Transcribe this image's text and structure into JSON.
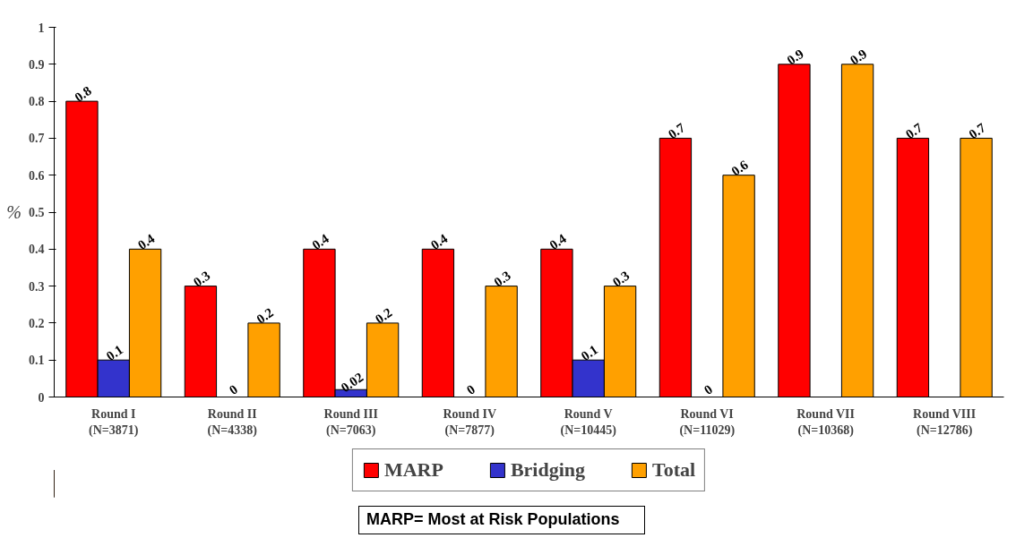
{
  "chart_data": {
    "type": "bar",
    "ylabel": "%",
    "categories": [
      "Round I (N=3871)",
      "Round II (N=4338)",
      "Round III (N=7063)",
      "Round IV (N=7877)",
      "Round V (N=10445)",
      "Round VI (N=11029)",
      "Round VII (N=10368)",
      "Round VIII (N=12786)"
    ],
    "series": [
      {
        "name": "MARP",
        "color": "#ff0000",
        "values": [
          0.8,
          0.3,
          0.4,
          0.4,
          0.4,
          0.7,
          0.9,
          0.7
        ]
      },
      {
        "name": "Bridging",
        "color": "#3333cc",
        "values": [
          0.1,
          0,
          0.02,
          0,
          0.1,
          0,
          null,
          null
        ]
      },
      {
        "name": "Total",
        "color": "#ffa000",
        "values": [
          0.4,
          0.2,
          0.2,
          0.3,
          0.3,
          0.6,
          0.9,
          0.7
        ]
      }
    ],
    "ylim": [
      0,
      1
    ],
    "yticks": [
      0,
      0.1,
      0.2,
      0.3,
      0.4,
      0.5,
      0.6,
      0.7,
      0.8,
      0.9,
      1
    ],
    "grid": false,
    "legend": "bottom",
    "data_labels": true,
    "annotations": [
      "MARP= Most at Risk Populations"
    ]
  }
}
